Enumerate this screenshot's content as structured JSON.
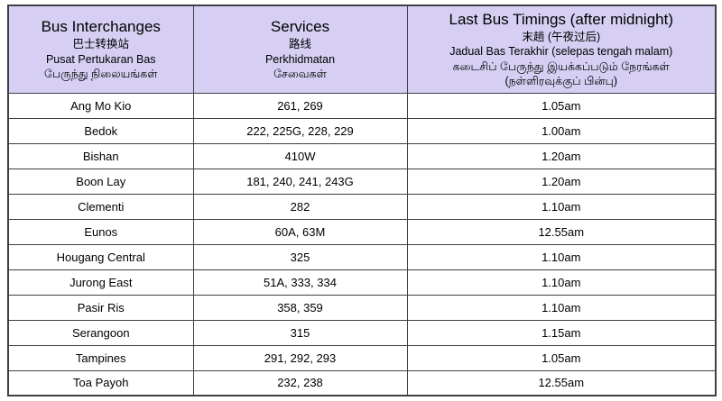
{
  "colors": {
    "header_bg": "#d6cff3",
    "border": "#3f3f46",
    "text": "#000000",
    "page_bg": "#ffffff"
  },
  "table": {
    "columns": [
      {
        "id": "interchange",
        "lines": [
          "Bus Interchanges",
          "巴士转换站",
          "Pusat Pertukaran Bas",
          "பேருந்து நிலையங்கள்"
        ]
      },
      {
        "id": "services",
        "lines": [
          "Services",
          "路线",
          "Perkhidmatan",
          "சேவைகள்"
        ]
      },
      {
        "id": "last_bus",
        "lines": [
          "Last Bus Timings (after midnight)",
          "末趟 (午夜过后)",
          "Jadual Bas Terakhir (selepas tengah malam)",
          "கடைசிப் பேருந்து இயக்கப்படும் நேரங்கள்",
          "(நள்ளிரவுக்குப் பின்பு)"
        ]
      }
    ],
    "rows": [
      {
        "interchange": "Ang Mo Kio",
        "services": "261, 269",
        "last_bus": "1.05am"
      },
      {
        "interchange": "Bedok",
        "services": "222, 225G, 228, 229",
        "last_bus": "1.00am"
      },
      {
        "interchange": "Bishan",
        "services": "410W",
        "last_bus": "1.20am"
      },
      {
        "interchange": "Boon Lay",
        "services": "181, 240, 241, 243G",
        "last_bus": "1.20am"
      },
      {
        "interchange": "Clementi",
        "services": "282",
        "last_bus": "1.10am"
      },
      {
        "interchange": "Eunos",
        "services": "60A, 63M",
        "last_bus": "12.55am"
      },
      {
        "interchange": "Hougang Central",
        "services": "325",
        "last_bus": "1.10am"
      },
      {
        "interchange": "Jurong East",
        "services": "51A, 333, 334",
        "last_bus": "1.10am"
      },
      {
        "interchange": "Pasir Ris",
        "services": "358, 359",
        "last_bus": "1.10am"
      },
      {
        "interchange": "Serangoon",
        "services": "315",
        "last_bus": "1.15am"
      },
      {
        "interchange": "Tampines",
        "services": "291, 292, 293",
        "last_bus": "1.05am"
      },
      {
        "interchange": "Toa Payoh",
        "services": "232, 238",
        "last_bus": "12.55am"
      }
    ]
  }
}
